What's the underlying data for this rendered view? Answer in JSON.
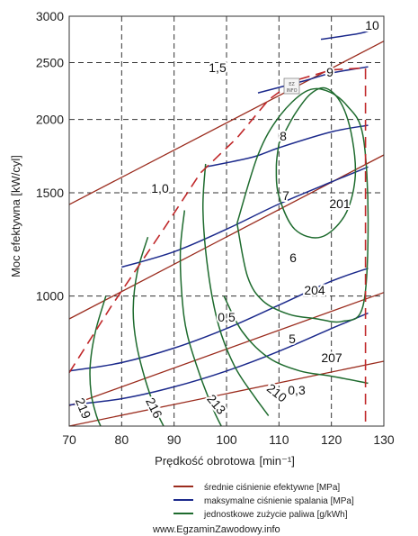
{
  "chart_data": {
    "type": "line",
    "xlabel": "Prędkość obrotowa",
    "xlabel_unit": "[min⁻¹]",
    "ylabel": "Moc efektywna [kW/cyl]",
    "xlim": [
      70,
      130
    ],
    "ylim": [
      600,
      3000
    ],
    "yscale": "log",
    "grid": "dashed",
    "x_ticks": [
      70,
      80,
      90,
      100,
      110,
      120,
      130
    ],
    "y_ticks": [
      1000,
      1500,
      2000,
      2500,
      3000
    ],
    "series_groups": [
      {
        "name": "średnie ciśnienie efektywne [MPa]",
        "color": "#9b2c1e",
        "lines": [
          {
            "label": "0,3",
            "points": [
              [
                70,
                565
              ],
              [
                130,
                774
              ]
            ]
          },
          {
            "label": "0,5",
            "points": [
              [
                70,
                650
              ],
              [
                130,
                1014
              ]
            ]
          },
          {
            "label": "1,0",
            "points": [
              [
                70,
                914
              ],
              [
                130,
                1740
              ]
            ]
          },
          {
            "label": "1,5",
            "points": [
              [
                70,
                1432
              ],
              [
                130,
                2720
              ]
            ]
          }
        ]
      },
      {
        "name": "maksymalne ciśnienie spalania [MPa]",
        "color": "#1c2a8c",
        "lines": [
          {
            "label": "5",
            "points": [
              [
                70,
                652
              ],
              [
                80,
                668
              ],
              [
                90,
                700
              ],
              [
                100,
                745
              ],
              [
                110,
                805
              ],
              [
                120,
                880
              ],
              [
                127,
                935
              ]
            ]
          },
          {
            "label": "6",
            "points": [
              [
                70,
                745
              ],
              [
                80,
                770
              ],
              [
                90,
                815
              ],
              [
                100,
                880
              ],
              [
                110,
                965
              ],
              [
                120,
                1060
              ],
              [
                127,
                1115
              ]
            ]
          },
          {
            "label": "7",
            "points": [
              [
                80,
                1120
              ],
              [
                90,
                1190
              ],
              [
                100,
                1300
              ],
              [
                110,
                1435
              ],
              [
                120,
                1565
              ],
              [
                127,
                1660
              ]
            ]
          },
          {
            "label": "8",
            "points": [
              [
                96,
                1660
              ],
              [
                105,
                1725
              ],
              [
                110,
                1790
              ],
              [
                120,
                1905
              ],
              [
                127,
                1955
              ]
            ]
          },
          {
            "label": "9",
            "points": [
              [
                106,
                2220
              ],
              [
                115,
                2330
              ],
              [
                120,
                2400
              ],
              [
                127,
                2460
              ]
            ]
          },
          {
            "label": "10",
            "points": [
              [
                118,
                2740
              ],
              [
                125,
                2800
              ],
              [
                127,
                2830
              ]
            ]
          }
        ]
      },
      {
        "name": "jednostkowe zużycie paliwa [g/kWh]",
        "color": "#1e6b2e",
        "lines": [
          {
            "label": "201",
            "points": [
              [
                110,
                1820
              ],
              [
                113,
                2040
              ],
              [
                116,
                2210
              ],
              [
                119,
                2260
              ],
              [
                122,
                2120
              ],
              [
                124,
                1850
              ],
              [
                124.5,
                1580
              ],
              [
                122.5,
                1370
              ],
              [
                118,
                1260
              ],
              [
                113,
                1300
              ],
              [
                110,
                1480
              ],
              [
                109.5,
                1660
              ],
              [
                110,
                1820
              ]
            ]
          },
          {
            "label": "204",
            "points": [
              [
                102,
                1330
              ],
              [
                106,
                1740
              ],
              [
                110,
                2020
              ],
              [
                115,
                2230
              ],
              [
                119,
                2240
              ],
              [
                123,
                2110
              ],
              [
                126,
                1880
              ],
              [
                127,
                1350
              ],
              [
                126,
                960
              ],
              [
                122,
                905
              ],
              [
                117,
                915
              ],
              [
                112,
                930
              ],
              [
                107,
                980
              ],
              [
                104,
                1080
              ],
              [
                102,
                1330
              ]
            ]
          },
          {
            "label": "207",
            "points": [
              [
                99.5,
                1000
              ],
              [
                103,
                870
              ],
              [
                108,
                785
              ],
              [
                114,
                745
              ],
              [
                120,
                730
              ],
              [
                127,
                710
              ]
            ]
          },
          {
            "label": "210",
            "points": [
              [
                96,
                1680
              ],
              [
                95.5,
                1400
              ],
              [
                96.5,
                1100
              ],
              [
                98.5,
                890
              ],
              [
                101.5,
                760
              ],
              [
                105,
                680
              ],
              [
                108,
                625
              ]
            ]
          },
          {
            "label": "213",
            "points": [
              [
                92,
                1400
              ],
              [
                91.2,
                1200
              ],
              [
                91.5,
                1000
              ],
              [
                92.5,
                860
              ],
              [
                95,
                730
              ],
              [
                97.5,
                640
              ],
              [
                99,
                598
              ]
            ]
          },
          {
            "label": "216",
            "points": [
              [
                85,
                1260
              ],
              [
                83,
                1100
              ],
              [
                82.2,
                950
              ],
              [
                82.8,
                830
              ],
              [
                84.5,
                720
              ],
              [
                86.5,
                640
              ],
              [
                88,
                598
              ]
            ]
          },
          {
            "label": "219",
            "points": [
              [
                77,
                1000
              ],
              [
                75,
                870
              ],
              [
                74,
                760
              ],
              [
                74.2,
                680
              ],
              [
                75.2,
                625
              ],
              [
                76,
                598
              ]
            ]
          }
        ]
      }
    ],
    "boundary_dashed": {
      "color": "#c0282a",
      "points": [
        [
          70,
          740
        ],
        [
          78,
          960
        ],
        [
          88,
          1300
        ],
        [
          95,
          1620
        ],
        [
          102,
          1860
        ],
        [
          108,
          2160
        ],
        [
          113,
          2330
        ],
        [
          120,
          2430
        ],
        [
          126.5,
          2450
        ],
        [
          126.5,
          600
        ]
      ]
    },
    "legend": [
      {
        "label": "średnie ciśnienie efektywne [MPa]",
        "color": "#9b2c1e"
      },
      {
        "label": "maksymalne ciśnienie spalania [MPa]",
        "color": "#1c2a8c"
      },
      {
        "label": "jednostkowe zużycie paliwa [g/kWh]",
        "color": "#1e6b2e"
      }
    ],
    "legend_placement": "bottom-right"
  },
  "watermark": "www.EgzaminZawodowy.info",
  "logo_text": "EZ INFO"
}
